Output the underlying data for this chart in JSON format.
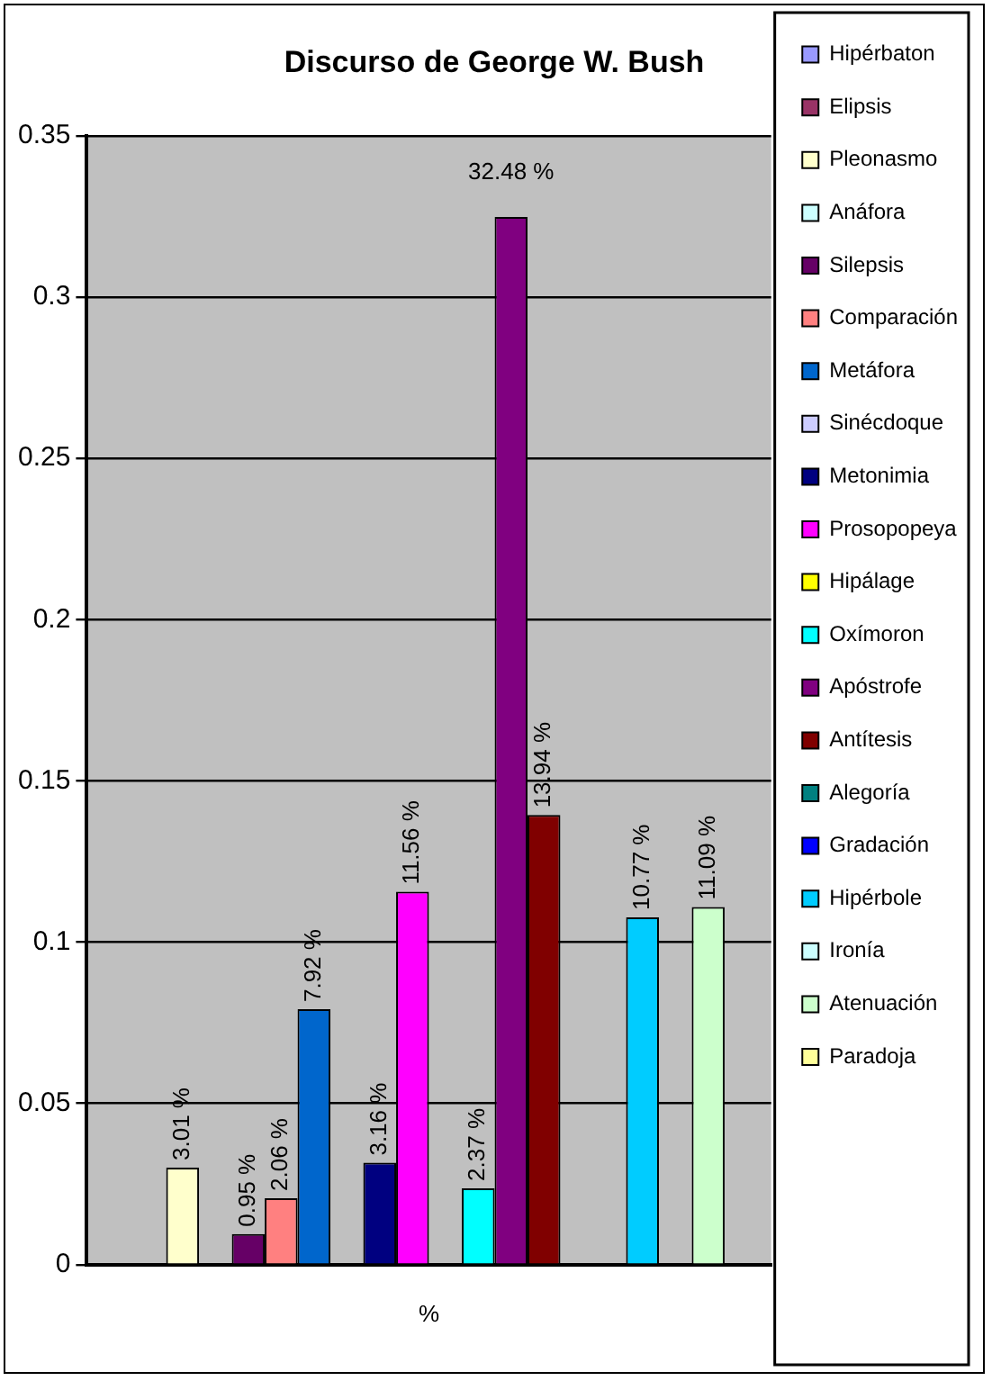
{
  "chart_data": {
    "type": "bar",
    "title": "Discurso de George W. Bush",
    "categories": [
      "%"
    ],
    "series": [
      {
        "name": "Hipérbaton",
        "color": "#9999ff",
        "values": [
          0
        ],
        "value_labels": [
          null
        ]
      },
      {
        "name": "Elipsis",
        "color": "#993366",
        "values": [
          0
        ],
        "value_labels": [
          null
        ]
      },
      {
        "name": "Pleonasmo",
        "color": "#ffffcc",
        "values": [
          0.0301
        ],
        "value_labels": [
          "3.01 %"
        ]
      },
      {
        "name": "Anáfora",
        "color": "#ccffff",
        "values": [
          0
        ],
        "value_labels": [
          null
        ]
      },
      {
        "name": "Silepsis",
        "color": "#660066",
        "values": [
          0.0095
        ],
        "value_labels": [
          "0.95 %"
        ]
      },
      {
        "name": "Comparación",
        "color": "#ff8080",
        "values": [
          0.0206
        ],
        "value_labels": [
          "2.06 %"
        ]
      },
      {
        "name": "Metáfora",
        "color": "#0066cc",
        "values": [
          0.0792
        ],
        "value_labels": [
          "7.92 %"
        ]
      },
      {
        "name": "Sinécdoque",
        "color": "#ccccff",
        "values": [
          0
        ],
        "value_labels": [
          null
        ]
      },
      {
        "name": "Metonimia",
        "color": "#000080",
        "values": [
          0.0316
        ],
        "value_labels": [
          "3.16 %"
        ]
      },
      {
        "name": "Prosopopeya",
        "color": "#ff00ff",
        "values": [
          0.1156
        ],
        "value_labels": [
          "11.56 %"
        ]
      },
      {
        "name": "Hipálage",
        "color": "#ffff00",
        "values": [
          0
        ],
        "value_labels": [
          null
        ]
      },
      {
        "name": "Oxímoron",
        "color": "#00ffff",
        "values": [
          0.0237
        ],
        "value_labels": [
          "2.37 %"
        ]
      },
      {
        "name": "Apóstrofe",
        "color": "#800080",
        "values": [
          0.3248
        ],
        "value_labels": [
          "32.48 %"
        ]
      },
      {
        "name": "Antítesis",
        "color": "#800000",
        "values": [
          0.1394
        ],
        "value_labels": [
          "13.94 %"
        ]
      },
      {
        "name": "Alegoría",
        "color": "#008080",
        "values": [
          0
        ],
        "value_labels": [
          null
        ]
      },
      {
        "name": "Gradación",
        "color": "#0000ff",
        "values": [
          0
        ],
        "value_labels": [
          null
        ]
      },
      {
        "name": "Hipérbole",
        "color": "#00ccff",
        "values": [
          0.1077
        ],
        "value_labels": [
          "10.77 %"
        ]
      },
      {
        "name": "Ironía",
        "color": "#ccffff",
        "values": [
          0
        ],
        "value_labels": [
          null
        ]
      },
      {
        "name": "Atenuación",
        "color": "#ccffcc",
        "values": [
          0.1109
        ],
        "value_labels": [
          "11.09 %"
        ]
      },
      {
        "name": "Paradoja",
        "color": "#ffff99",
        "values": [
          0
        ],
        "value_labels": [
          null
        ]
      }
    ],
    "ylim": [
      0,
      0.35
    ],
    "yticks": [
      0,
      0.05,
      0.1,
      0.15,
      0.2,
      0.25,
      0.3,
      0.35
    ],
    "grid": "y",
    "legend": "right"
  }
}
